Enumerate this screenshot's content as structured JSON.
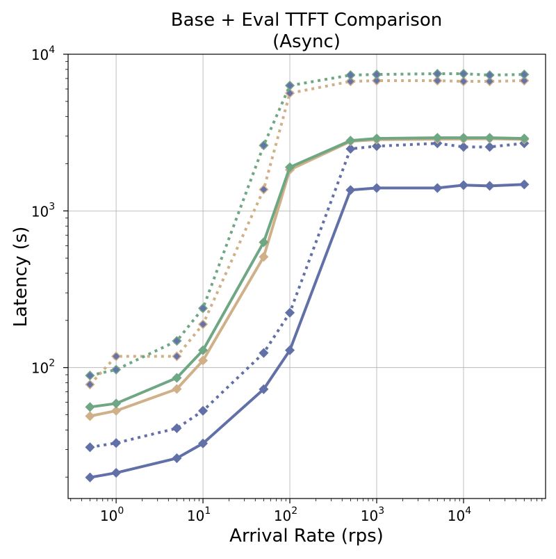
{
  "chart_data": {
    "type": "line",
    "title": "Base + Eval TTFT Comparison",
    "subtitle": "(Async)",
    "xlabel": "Arrival Rate (rps)",
    "ylabel": "Latency (s)",
    "xscale": "log",
    "yscale": "log",
    "xlim": [
      0.28,
      88000
    ],
    "ylim": [
      14.6,
      10000
    ],
    "grid": true,
    "x_ticks": [
      {
        "v": 1,
        "base": "10",
        "exp": "0"
      },
      {
        "v": 10,
        "base": "10",
        "exp": "1"
      },
      {
        "v": 100,
        "base": "10",
        "exp": "2"
      },
      {
        "v": 1000,
        "base": "10",
        "exp": "3"
      },
      {
        "v": 10000,
        "base": "10",
        "exp": "4"
      }
    ],
    "y_ticks": [
      {
        "v": 100,
        "base": "10",
        "exp": "2"
      },
      {
        "v": 1000,
        "base": "10",
        "exp": "3"
      },
      {
        "v": 10000,
        "base": "10",
        "exp": "4"
      }
    ],
    "x": [
      0.5,
      1,
      5,
      10,
      50,
      100,
      500,
      1000,
      5000,
      10000,
      20000,
      50000
    ],
    "series": [
      {
        "color": "#cfb088",
        "style": "dotted",
        "marker_fill": "#6573aa",
        "values": [
          78,
          118,
          118,
          189,
          1370,
          5640,
          6710,
          6780,
          6780,
          6710,
          6710,
          6780
        ]
      },
      {
        "color": "#6fa784",
        "style": "dotted",
        "marker_fill": "#6573aa",
        "values": [
          89,
          97,
          148,
          239,
          2620,
          6310,
          7360,
          7430,
          7510,
          7510,
          7360,
          7430
        ]
      },
      {
        "color": "#6270a8",
        "style": "dotted",
        "marker_fill": "#6270a8",
        "values": [
          31,
          33,
          41,
          53,
          124,
          224,
          2490,
          2590,
          2700,
          2560,
          2560,
          2700
        ]
      },
      {
        "color": "#cfb088",
        "style": "solid",
        "marker_fill": "#cfb088",
        "values": [
          49,
          53,
          73,
          111,
          509,
          1830,
          2780,
          2850,
          2870,
          2880,
          2890,
          2860
        ]
      },
      {
        "color": "#6fa784",
        "style": "solid",
        "marker_fill": "#6fa784",
        "values": [
          56,
          59,
          86,
          129,
          631,
          1900,
          2810,
          2900,
          2930,
          2930,
          2930,
          2900
        ]
      },
      {
        "color": "#6270a8",
        "style": "solid",
        "marker_fill": "#6270a8",
        "values": [
          19.9,
          21.3,
          26.4,
          32.8,
          72.8,
          129,
          1360,
          1400,
          1400,
          1460,
          1445,
          1475
        ]
      }
    ]
  }
}
